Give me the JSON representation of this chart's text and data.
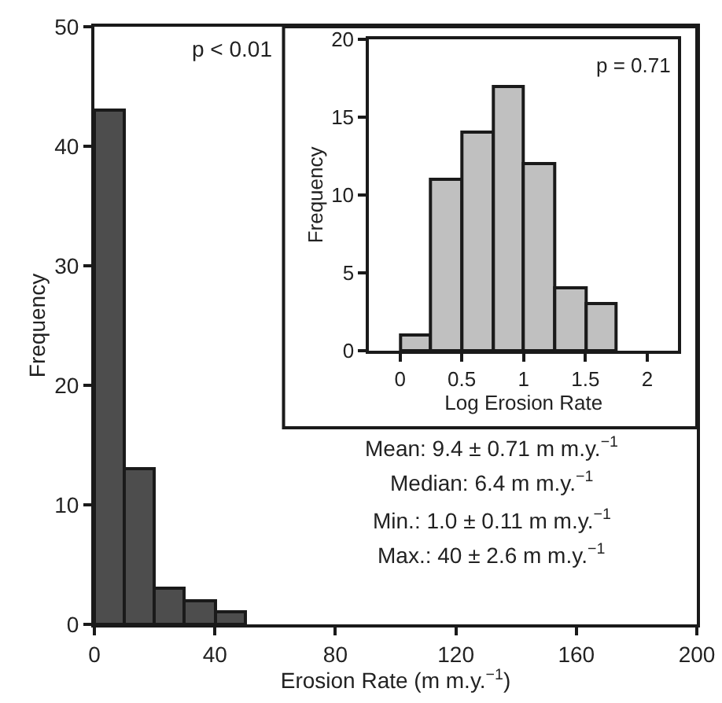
{
  "chart_data": [
    {
      "type": "histogram",
      "xlabel": "Erosion Rate (m m.y.$^{−1}$)",
      "ylabel": "Frequency",
      "bins": [
        0,
        10,
        20,
        30,
        40,
        50
      ],
      "values": [
        43,
        13,
        3,
        2,
        1
      ],
      "color": "#4d4d4d",
      "xlim": [
        0,
        200
      ],
      "xticks": [
        0,
        40,
        80,
        120,
        160,
        200
      ],
      "ylim": [
        0,
        50
      ],
      "yticks": [
        0,
        10,
        20,
        30,
        40,
        50
      ],
      "grid": false,
      "annotations": [
        "p < 0.01",
        "Mean: 9.4 ± 0.71 m m.y.$^{−1}$",
        "Median: 6.4 m m.y.$^{−1}$",
        "Min.: 1.0 ± 0.11 m m.y.$^{−1}$",
        "Max.: 40 ± 2.6 m m.y.$^{−1}$"
      ]
    },
    {
      "type": "histogram",
      "xlabel": "Log Erosion Rate",
      "ylabel": "Frequency",
      "bins": [
        0,
        0.25,
        0.5,
        0.75,
        1,
        1.25,
        1.5,
        1.75
      ],
      "values": [
        1,
        11,
        14,
        17,
        12,
        4,
        3
      ],
      "color": "#c0c0c0",
      "xlim": [
        -0.25,
        2.25
      ],
      "xticks": [
        0,
        0.5,
        1,
        1.5,
        2
      ],
      "ylim": [
        0,
        20
      ],
      "yticks": [
        0,
        5,
        10,
        15,
        20
      ],
      "grid": false,
      "annotations": [
        "p = 0.71"
      ]
    }
  ]
}
